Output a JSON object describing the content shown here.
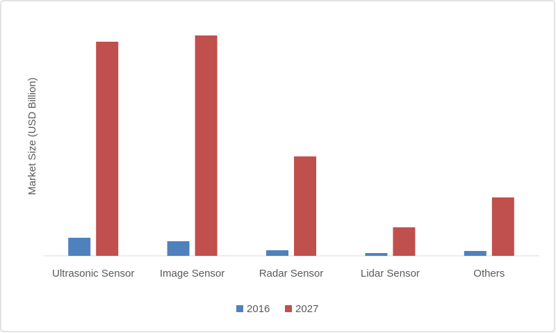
{
  "chart_data": {
    "type": "bar",
    "y_label": "Market Size (USD Billion)",
    "categories": [
      "Ultrasonic Sensor",
      "Image Sensor",
      "Radar Sensor",
      "Lidar Sensor",
      "Others"
    ],
    "series": [
      {
        "name": "2016",
        "color": "#4f81bd",
        "values": [
          26,
          21,
          8,
          4,
          7
        ]
      },
      {
        "name": "2027",
        "color": "#c0504d",
        "values": [
          308,
          317,
          143,
          41,
          84
        ]
      }
    ],
    "ylim": [
      0,
      320
    ],
    "legend": "bottom"
  }
}
